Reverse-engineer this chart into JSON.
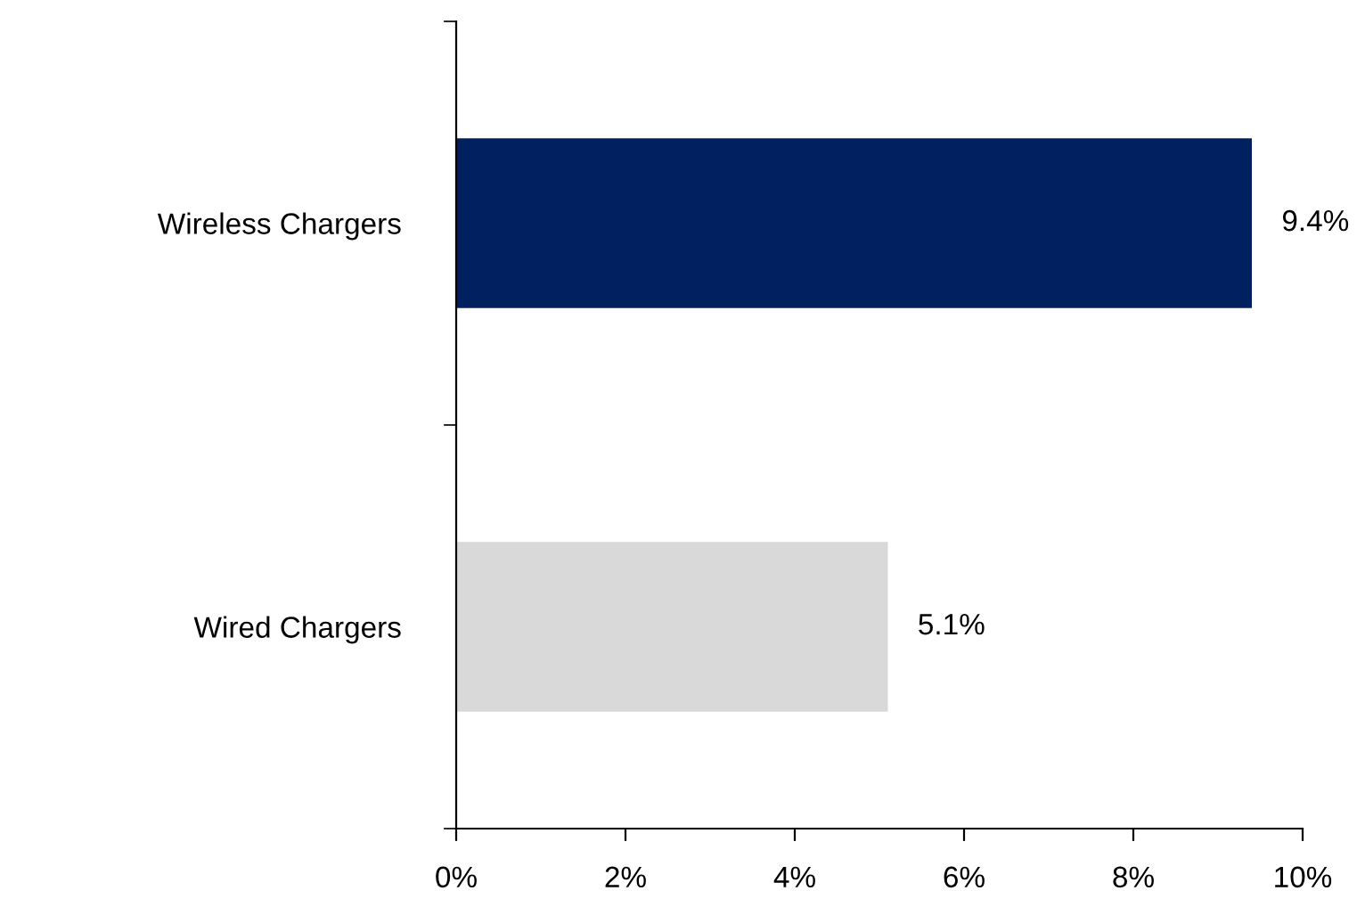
{
  "chart_data": {
    "type": "bar",
    "orientation": "horizontal",
    "categories": [
      "Wireless Chargers",
      "Wired Chargers"
    ],
    "values": [
      9.4,
      5.1
    ],
    "colors": [
      "#002060",
      "#d9d9d9"
    ],
    "value_labels": [
      "9.4%",
      "5.1%"
    ],
    "xlim": [
      0,
      10
    ],
    "xticks": [
      {
        "value": 0,
        "label": "0%"
      },
      {
        "value": 2,
        "label": "2%"
      },
      {
        "value": 4,
        "label": "4%"
      },
      {
        "value": 6,
        "label": "6%"
      },
      {
        "value": 8,
        "label": "8%"
      },
      {
        "value": 10,
        "label": "10%"
      }
    ],
    "grid": false,
    "legend": false
  }
}
